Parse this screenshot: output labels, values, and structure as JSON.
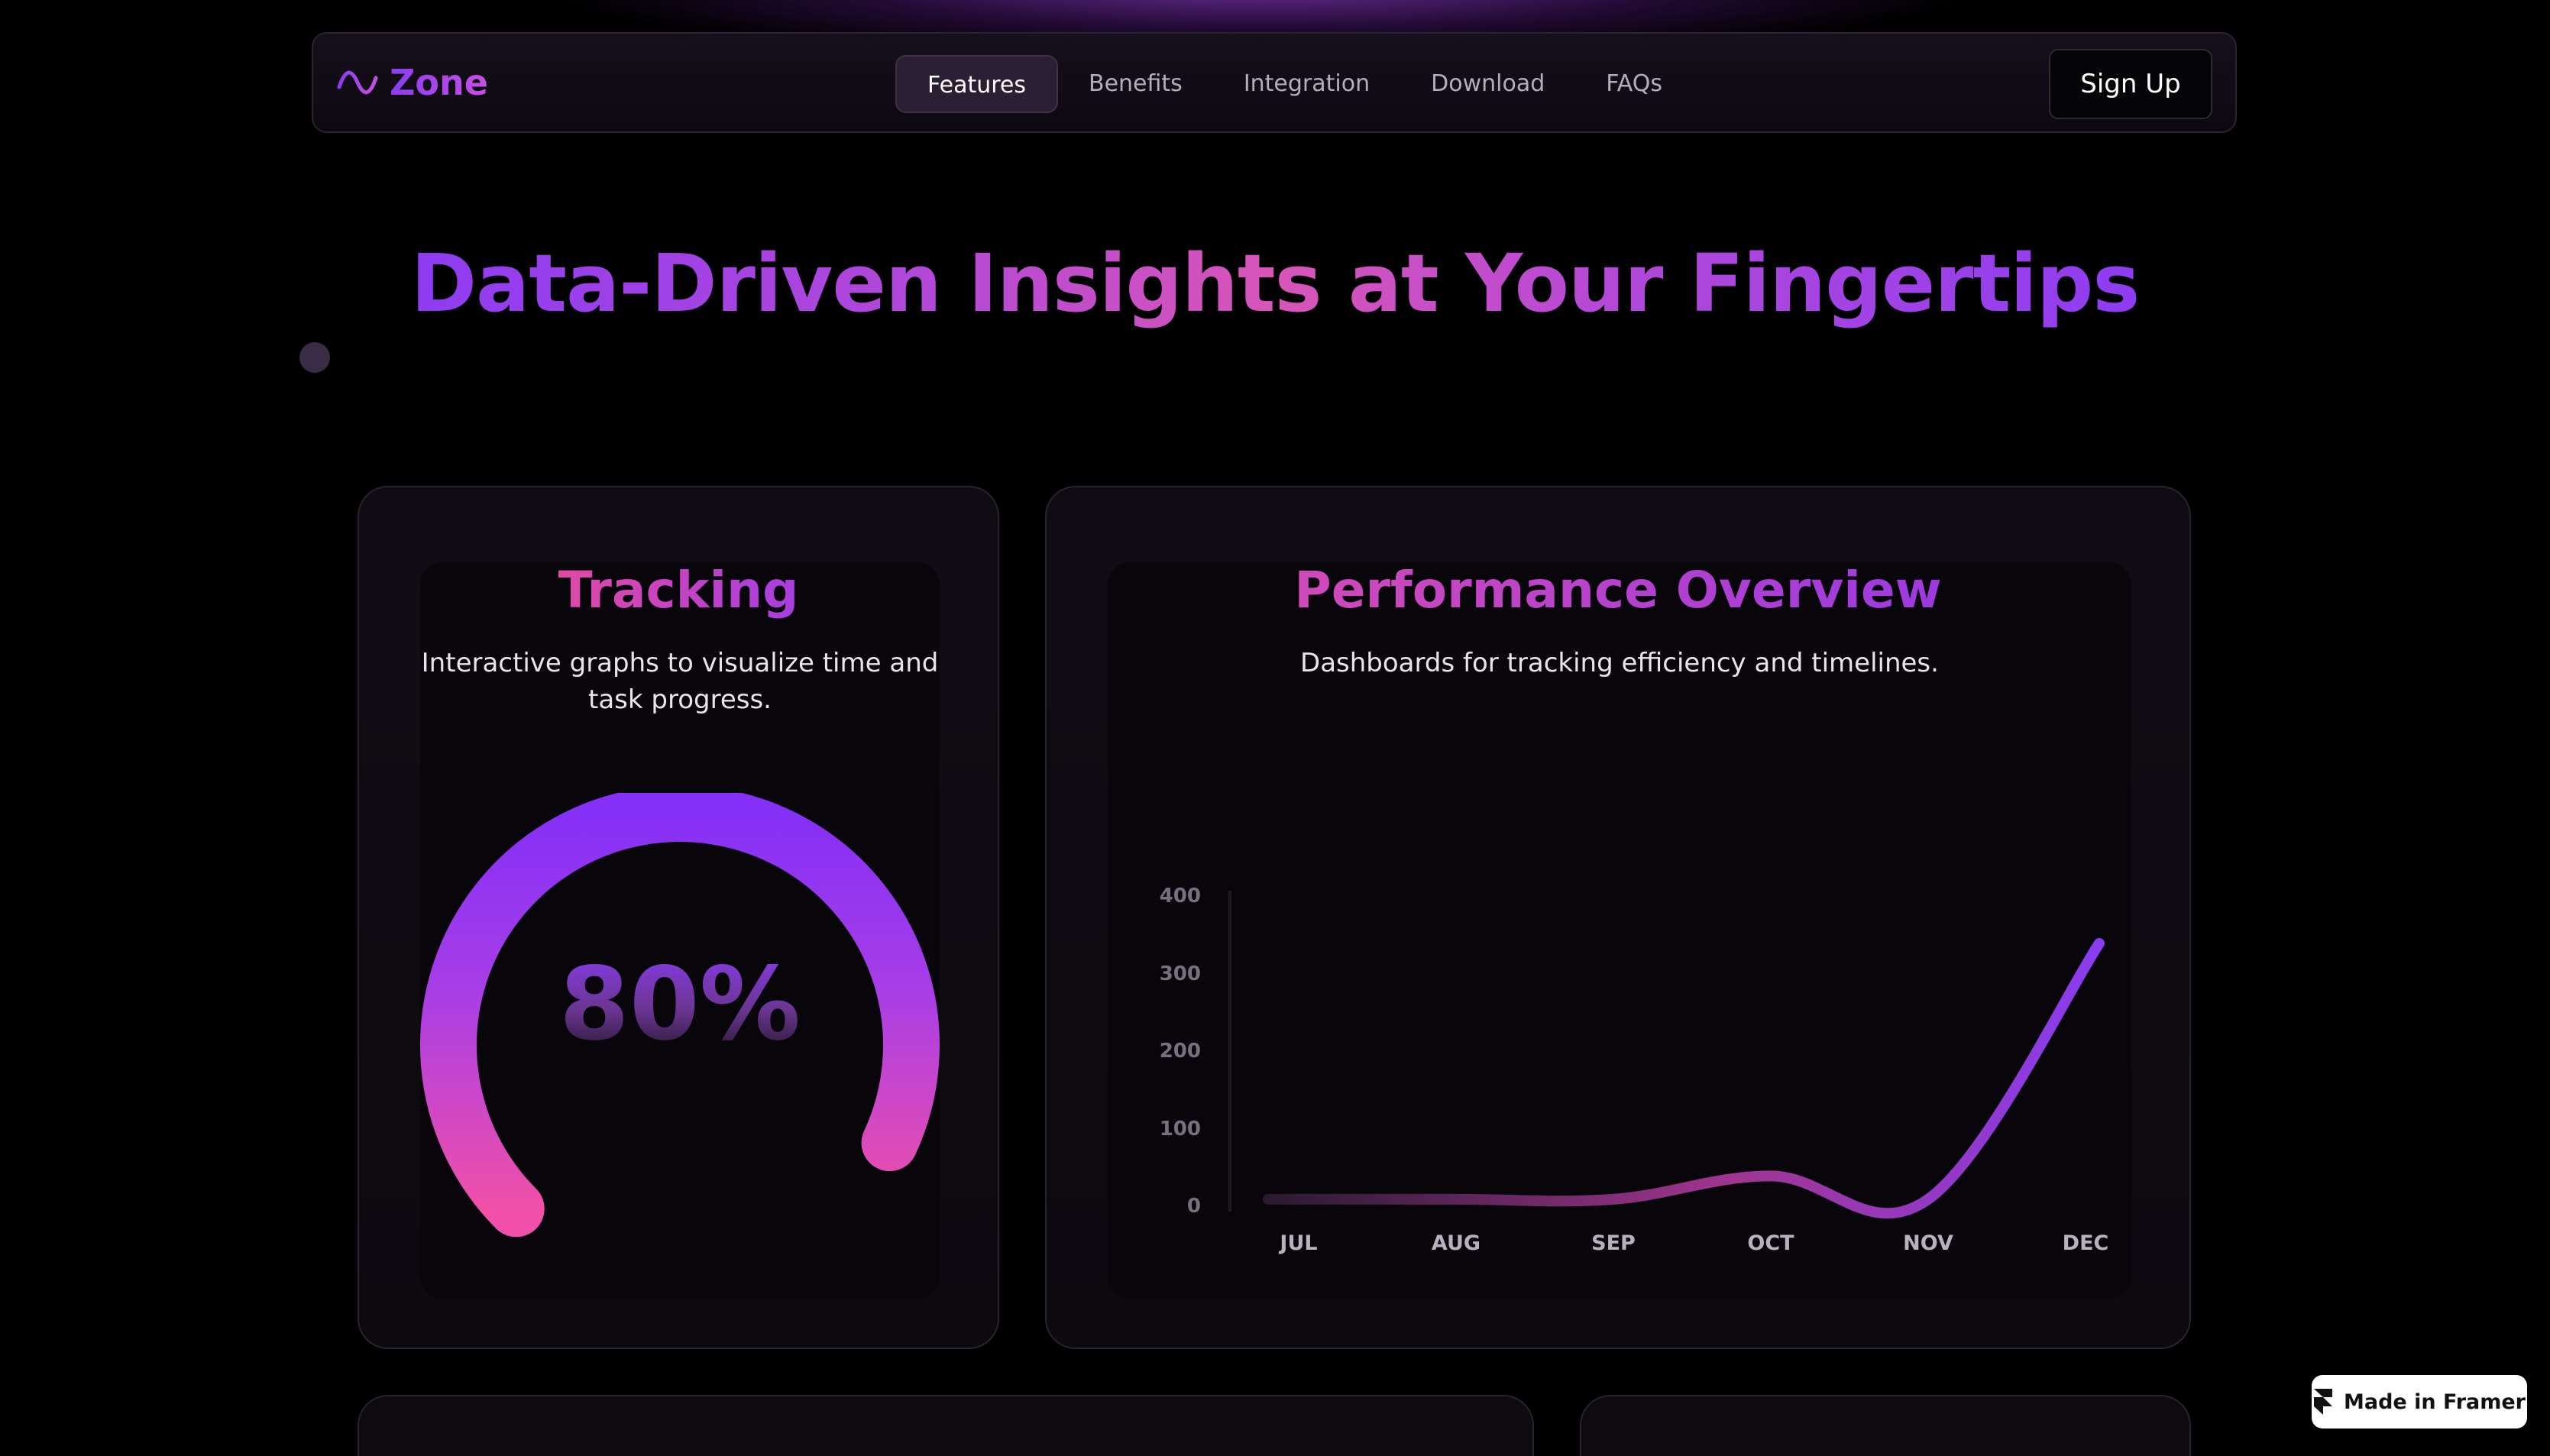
{
  "nav": {
    "logo_text": "Zone",
    "links": [
      "Features",
      "Benefits",
      "Integration",
      "Download",
      "FAQs"
    ],
    "active_link": "Features",
    "signup_label": "Sign Up"
  },
  "hero": {
    "headline": "Data-Driven Insights at Your Fingertips"
  },
  "tracking_card": {
    "title": "Tracking",
    "description": "Interactive graphs to visualize time and task progress.",
    "gauge_value_label": "80%",
    "gauge_fraction": 0.8
  },
  "performance_card": {
    "title": "Performance Overview",
    "description": "Dashboards for tracking efficiency and timelines."
  },
  "chart_data": {
    "type": "line",
    "categories": [
      "JUL",
      "AUG",
      "SEP",
      "OCT",
      "NOV",
      "DEC"
    ],
    "series": [
      {
        "values": [
          10,
          10,
          10,
          40,
          10,
          340
        ]
      }
    ],
    "yticks": [
      "400",
      "300",
      "200",
      "100",
      "0"
    ],
    "ylim": [
      0,
      400
    ],
    "colors": {
      "start": "#2a1a30",
      "mid": "#a0358f",
      "end": "#8a3cf0"
    }
  },
  "badge": {
    "label": "Made in Framer"
  }
}
